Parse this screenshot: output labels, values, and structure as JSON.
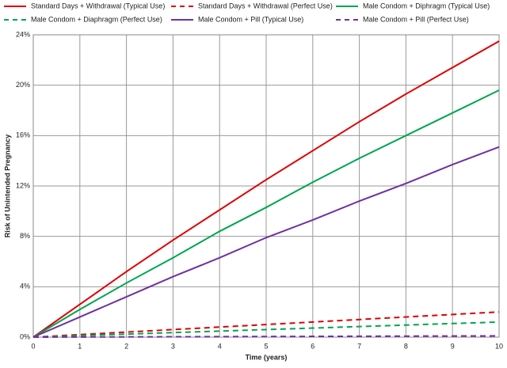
{
  "chart_data": {
    "type": "line",
    "x_label": "Time (years)",
    "y_label": "Risk of Unintended Pregnancy",
    "x": [
      0,
      1,
      2,
      3,
      4,
      5,
      6,
      7,
      8,
      9,
      10
    ],
    "series": [
      {
        "name": "Standard Days + Withdrawal (Typical Use)",
        "color": "#e00000",
        "dash": false,
        "values": [
          0,
          2.6,
          5.2,
          7.7,
          10.1,
          12.5,
          14.8,
          17.1,
          19.3,
          21.4,
          23.5
        ]
      },
      {
        "name": "Standard Days + Withdrawal (Perfect Use)",
        "color": "#e00000",
        "dash": true,
        "values": [
          0,
          0.2,
          0.4,
          0.6,
          0.8,
          1.0,
          1.2,
          1.4,
          1.6,
          1.8,
          2.0
        ]
      },
      {
        "name": "Male Condom + Diphragm (Typical Use)",
        "color": "#00a550",
        "dash": false,
        "values": [
          0,
          2.2,
          4.3,
          6.3,
          8.4,
          10.3,
          12.3,
          14.2,
          16.0,
          17.8,
          19.6
        ]
      },
      {
        "name": "Male Condom + Diaphragm (Perfect Use)",
        "color": "#00a550",
        "dash": true,
        "values": [
          0,
          0.12,
          0.24,
          0.36,
          0.48,
          0.6,
          0.72,
          0.84,
          0.96,
          1.08,
          1.2
        ]
      },
      {
        "name": "Male Condom + Pill (Typical Use)",
        "color": "#7030a0",
        "dash": false,
        "values": [
          0,
          1.6,
          3.2,
          4.8,
          6.3,
          7.9,
          9.3,
          10.8,
          12.2,
          13.7,
          15.1
        ]
      },
      {
        "name": "Male Condom + Pill (Perfect Use)",
        "color": "#7030a0",
        "dash": true,
        "values": [
          0,
          0.01,
          0.02,
          0.03,
          0.04,
          0.05,
          0.06,
          0.07,
          0.08,
          0.09,
          0.1
        ]
      }
    ],
    "xlim": [
      0,
      10
    ],
    "xticks": [
      0,
      1,
      2,
      3,
      4,
      5,
      6,
      7,
      8,
      9,
      10
    ],
    "ylim": [
      0,
      24
    ],
    "yticks": [
      {
        "value": 0,
        "label": "0%"
      },
      {
        "value": 4,
        "label": "4%"
      },
      {
        "value": 8,
        "label": "8%"
      },
      {
        "value": 12,
        "label": "12%"
      },
      {
        "value": 16,
        "label": "16%"
      },
      {
        "value": 20,
        "label": "20%"
      },
      {
        "value": 24,
        "label": "24%"
      }
    ],
    "grid": true,
    "legend": "top"
  }
}
